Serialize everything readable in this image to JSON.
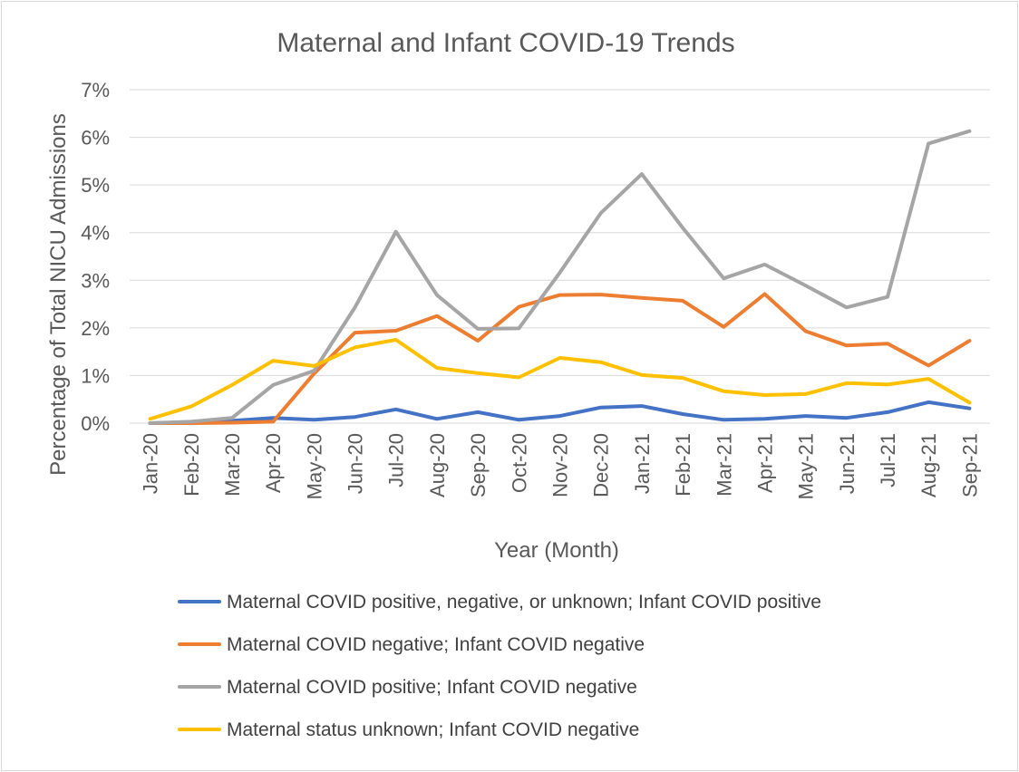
{
  "chart_data": {
    "type": "line",
    "title": "Maternal and Infant COVID-19 Trends",
    "xlabel": "Year (Month)",
    "ylabel": "Percentage of Total NICU Admissions",
    "ylim": [
      0,
      7
    ],
    "y_ticks": [
      "0%",
      "1%",
      "2%",
      "3%",
      "4%",
      "5%",
      "6%",
      "7%"
    ],
    "grid": true,
    "legend_position": "bottom",
    "categories": [
      "Jan-20",
      "Feb-20",
      "Mar-20",
      "Apr-20",
      "May-20",
      "Jun-20",
      "Jul-20",
      "Aug-20",
      "Sep-20",
      "Oct-20",
      "Nov-20",
      "Dec-20",
      "Jan-21",
      "Feb-21",
      "Mar-21",
      "Apr-21",
      "May-21",
      "Jun-21",
      "Jul-21",
      "Aug-21",
      "Sep-21"
    ],
    "series": [
      {
        "name": "Maternal COVID positive, negative, or unknown; Infant COVID positive",
        "color": "#4472C4",
        "values": [
          0.0,
          0.02,
          0.05,
          0.11,
          0.07,
          0.13,
          0.29,
          0.09,
          0.23,
          0.07,
          0.15,
          0.33,
          0.36,
          0.19,
          0.07,
          0.09,
          0.15,
          0.11,
          0.23,
          0.44,
          0.31
        ]
      },
      {
        "name": "Maternal COVID negative; Infant COVID negative",
        "color": "#ED7D31",
        "values": [
          0.0,
          0.0,
          0.01,
          0.03,
          1.04,
          1.9,
          1.94,
          2.25,
          1.73,
          2.44,
          2.69,
          2.7,
          2.63,
          2.57,
          2.02,
          2.71,
          1.93,
          1.63,
          1.67,
          1.21,
          1.73
        ]
      },
      {
        "name": "Maternal COVID positive; Infant COVID negative",
        "color": "#A5A5A5",
        "values": [
          0.0,
          0.03,
          0.11,
          0.8,
          1.1,
          2.43,
          4.02,
          2.69,
          1.98,
          1.99,
          3.16,
          4.41,
          5.23,
          4.1,
          3.04,
          3.33,
          2.89,
          2.43,
          2.65,
          5.87,
          6.13
        ]
      },
      {
        "name": "Maternal status unknown; Infant COVID negative",
        "color": "#FFC000",
        "values": [
          0.09,
          0.35,
          0.8,
          1.31,
          1.2,
          1.59,
          1.75,
          1.16,
          1.05,
          0.96,
          1.37,
          1.28,
          1.01,
          0.95,
          0.67,
          0.59,
          0.61,
          0.84,
          0.81,
          0.93,
          0.43
        ]
      }
    ]
  }
}
